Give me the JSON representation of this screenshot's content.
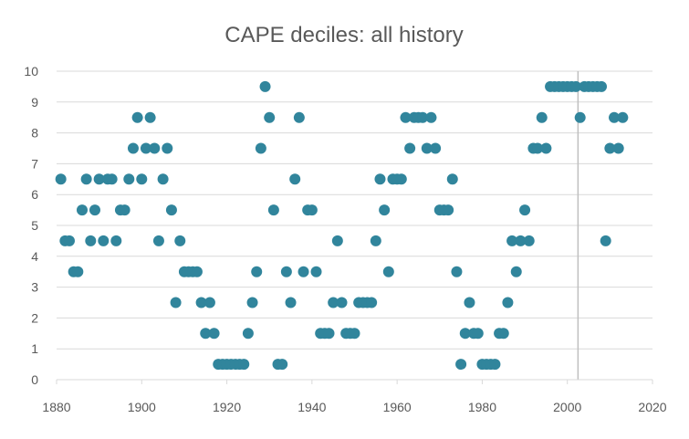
{
  "chart_data": {
    "type": "scatter",
    "title": "CAPE deciles: all history",
    "xlabel": "",
    "ylabel": "",
    "xlim": [
      1880,
      2020
    ],
    "ylim": [
      0,
      10
    ],
    "xticks": [
      1880,
      1900,
      1920,
      1940,
      1960,
      1980,
      2000,
      2020
    ],
    "yticks": [
      0,
      1,
      2,
      3,
      4,
      5,
      6,
      7,
      8,
      9,
      10
    ],
    "grid": "horizontal",
    "legend": "none",
    "marker_color": "#31859C",
    "reference_line": {
      "x": 2002.5,
      "color": "#BFBFBF"
    },
    "series": [
      {
        "points": [
          [
            1881,
            6.5
          ],
          [
            1882,
            4.5
          ],
          [
            1883,
            4.5
          ],
          [
            1884,
            3.5
          ],
          [
            1885,
            3.5
          ],
          [
            1886,
            5.5
          ],
          [
            1887,
            6.5
          ],
          [
            1888,
            4.5
          ],
          [
            1889,
            5.5
          ],
          [
            1890,
            6.5
          ],
          [
            1891,
            4.5
          ],
          [
            1892,
            6.5
          ],
          [
            1893,
            6.5
          ],
          [
            1894,
            4.5
          ],
          [
            1895,
            5.5
          ],
          [
            1896,
            5.5
          ],
          [
            1897,
            6.5
          ],
          [
            1898,
            7.5
          ],
          [
            1899,
            8.5
          ],
          [
            1900,
            6.5
          ],
          [
            1901,
            7.5
          ],
          [
            1902,
            8.5
          ],
          [
            1903,
            7.5
          ],
          [
            1904,
            4.5
          ],
          [
            1905,
            6.5
          ],
          [
            1906,
            7.5
          ],
          [
            1907,
            5.5
          ],
          [
            1908,
            2.5
          ],
          [
            1909,
            4.5
          ],
          [
            1910,
            3.5
          ],
          [
            1911,
            3.5
          ],
          [
            1912,
            3.5
          ],
          [
            1913,
            3.5
          ],
          [
            1914,
            2.5
          ],
          [
            1915,
            1.5
          ],
          [
            1916,
            2.5
          ],
          [
            1917,
            1.5
          ],
          [
            1918,
            0.5
          ],
          [
            1919,
            0.5
          ],
          [
            1920,
            0.5
          ],
          [
            1921,
            0.5
          ],
          [
            1922,
            0.5
          ],
          [
            1923,
            0.5
          ],
          [
            1924,
            0.5
          ],
          [
            1925,
            1.5
          ],
          [
            1926,
            2.5
          ],
          [
            1927,
            3.5
          ],
          [
            1928,
            7.5
          ],
          [
            1929,
            9.5
          ],
          [
            1930,
            8.5
          ],
          [
            1931,
            5.5
          ],
          [
            1932,
            0.5
          ],
          [
            1933,
            0.5
          ],
          [
            1934,
            3.5
          ],
          [
            1935,
            2.5
          ],
          [
            1936,
            6.5
          ],
          [
            1937,
            8.5
          ],
          [
            1938,
            3.5
          ],
          [
            1939,
            5.5
          ],
          [
            1940,
            5.5
          ],
          [
            1941,
            3.5
          ],
          [
            1942,
            1.5
          ],
          [
            1943,
            1.5
          ],
          [
            1944,
            1.5
          ],
          [
            1945,
            2.5
          ],
          [
            1946,
            4.5
          ],
          [
            1947,
            2.5
          ],
          [
            1948,
            1.5
          ],
          [
            1949,
            1.5
          ],
          [
            1950,
            1.5
          ],
          [
            1951,
            2.5
          ],
          [
            1952,
            2.5
          ],
          [
            1953,
            2.5
          ],
          [
            1954,
            2.5
          ],
          [
            1955,
            4.5
          ],
          [
            1956,
            6.5
          ],
          [
            1957,
            5.5
          ],
          [
            1958,
            3.5
          ],
          [
            1959,
            6.5
          ],
          [
            1960,
            6.5
          ],
          [
            1961,
            6.5
          ],
          [
            1962,
            8.5
          ],
          [
            1963,
            7.5
          ],
          [
            1964,
            8.5
          ],
          [
            1965,
            8.5
          ],
          [
            1966,
            8.5
          ],
          [
            1967,
            7.5
          ],
          [
            1968,
            8.5
          ],
          [
            1969,
            7.5
          ],
          [
            1970,
            5.5
          ],
          [
            1971,
            5.5
          ],
          [
            1972,
            5.5
          ],
          [
            1973,
            6.5
          ],
          [
            1974,
            3.5
          ],
          [
            1975,
            0.5
          ],
          [
            1976,
            1.5
          ],
          [
            1977,
            2.5
          ],
          [
            1978,
            1.5
          ],
          [
            1979,
            1.5
          ],
          [
            1980,
            0.5
          ],
          [
            1981,
            0.5
          ],
          [
            1982,
            0.5
          ],
          [
            1983,
            0.5
          ],
          [
            1984,
            1.5
          ],
          [
            1985,
            1.5
          ],
          [
            1986,
            2.5
          ],
          [
            1987,
            4.5
          ],
          [
            1988,
            3.5
          ],
          [
            1989,
            4.5
          ],
          [
            1990,
            5.5
          ],
          [
            1991,
            4.5
          ],
          [
            1992,
            7.5
          ],
          [
            1993,
            7.5
          ],
          [
            1994,
            8.5
          ],
          [
            1995,
            7.5
          ],
          [
            1996,
            9.5
          ],
          [
            1997,
            9.5
          ],
          [
            1998,
            9.5
          ],
          [
            1999,
            9.5
          ],
          [
            2000,
            9.5
          ],
          [
            2001,
            9.5
          ],
          [
            2002,
            9.5
          ],
          [
            2003,
            8.5
          ],
          [
            2004,
            9.5
          ],
          [
            2005,
            9.5
          ],
          [
            2006,
            9.5
          ],
          [
            2007,
            9.5
          ],
          [
            2008,
            9.5
          ],
          [
            2009,
            4.5
          ],
          [
            2010,
            7.5
          ],
          [
            2011,
            8.5
          ],
          [
            2012,
            7.5
          ],
          [
            2013,
            8.5
          ]
        ]
      }
    ]
  }
}
